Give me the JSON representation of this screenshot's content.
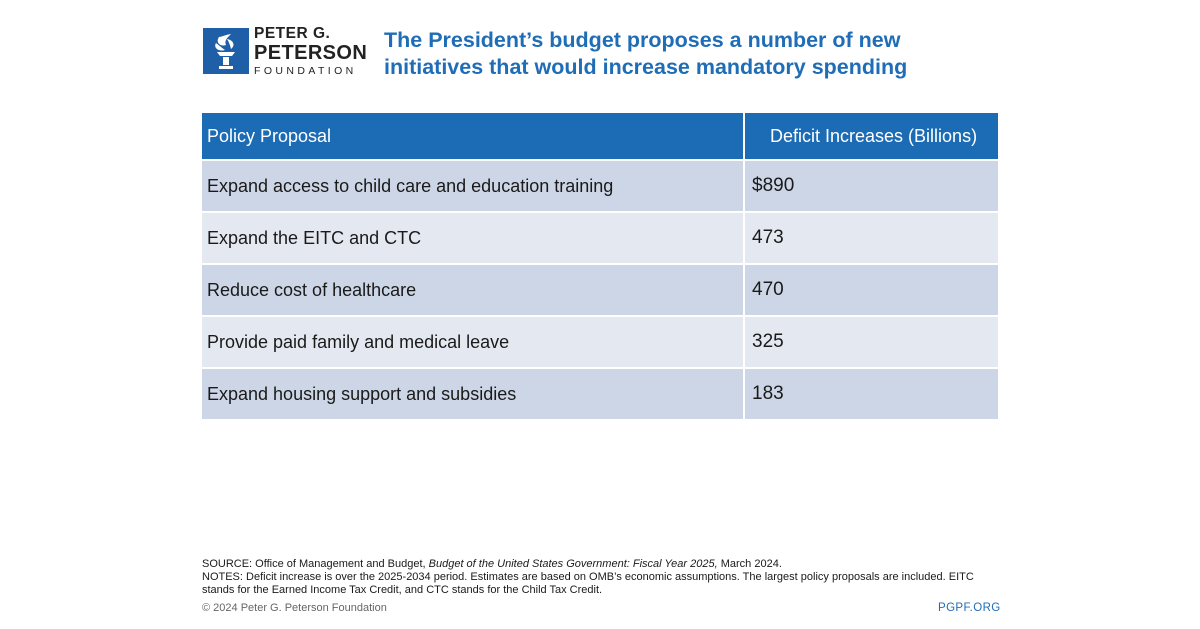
{
  "logo": {
    "line1": "PETER G.",
    "line2": "PETERSON",
    "line3": "FOUNDATION"
  },
  "title": "The President’s budget proposes a number of new initiatives that would increase mandatory spending",
  "table": {
    "headers": [
      "Policy Proposal",
      "Deficit Increases (Billions)"
    ],
    "rows": [
      {
        "proposal": "Expand access to child care and education training",
        "value": "$890"
      },
      {
        "proposal": "Expand the EITC and CTC",
        "value": "473"
      },
      {
        "proposal": "Reduce cost of healthcare",
        "value": "470"
      },
      {
        "proposal": "Provide paid family and medical leave",
        "value": "325"
      },
      {
        "proposal": "Expand housing support and subsidies",
        "value": "183"
      }
    ]
  },
  "source": {
    "prefix": "SOURCE: Office of Management and Budget, ",
    "title": "Budget of the United States Government: Fiscal Year 2025,",
    "suffix": " March 2024."
  },
  "notes": "NOTES: Deficit increase is over the 2025-2034 period. Estimates are based on OMB’s economic assumptions. The largest policy proposals are included. EITC stands for the Earned Income Tax Credit, and CTC stands for the Child Tax Credit.",
  "copyright": "© 2024 Peter G. Peterson Foundation",
  "url": "PGPF.ORG",
  "colors": {
    "brand_blue": "#1c6bb5",
    "row_dark": "#cdd6e6",
    "row_light": "#e4e9f1"
  }
}
